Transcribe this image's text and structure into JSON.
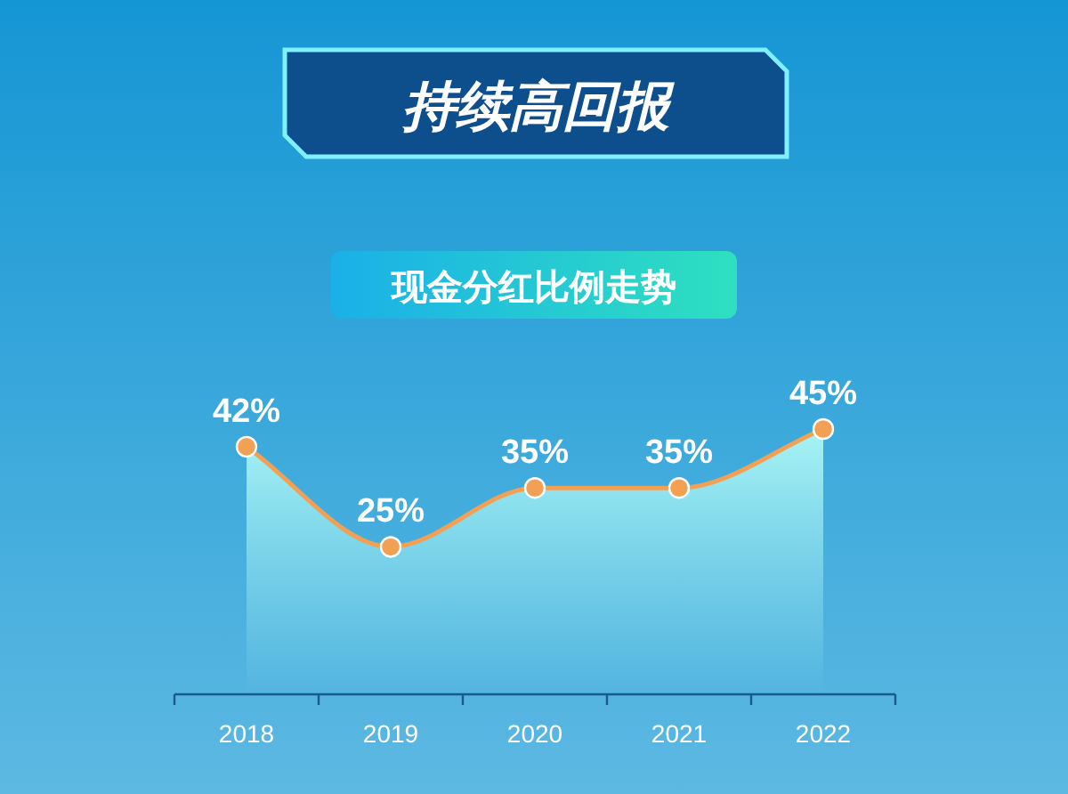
{
  "chart_data": {
    "type": "area",
    "title": "持续高回报",
    "subtitle": "现金分红比例走势",
    "categories": [
      "2018",
      "2019",
      "2020",
      "2021",
      "2022"
    ],
    "marker": "circle",
    "series": [
      {
        "color": "#f2a054",
        "values": [
          42,
          25,
          35,
          35,
          45
        ],
        "value_labels": [
          "42%",
          "25%",
          "35%",
          "35%",
          "45%"
        ]
      }
    ]
  }
}
